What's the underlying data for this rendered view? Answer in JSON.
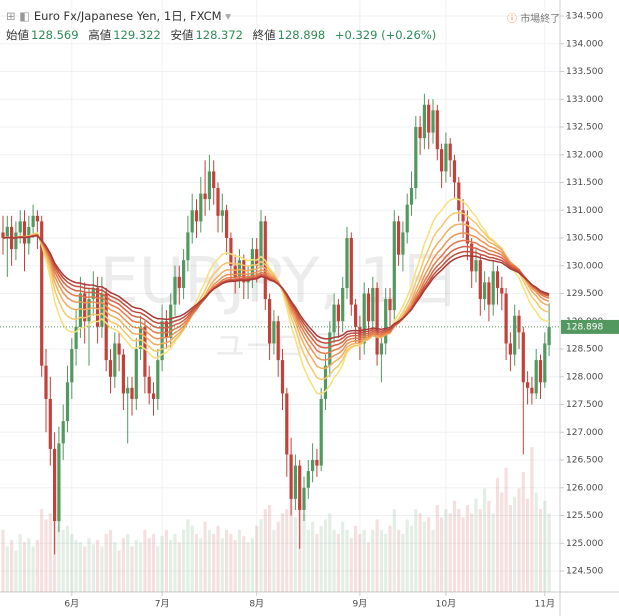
{
  "chart_data": {
    "type": "candlestick",
    "title": "Euro Fx/Japanese Yen, 1日, FXCM",
    "status": "市場終了",
    "ohlc_labels": {
      "open": "始値",
      "high": "高値",
      "low": "安値",
      "close": "終値"
    },
    "change": "+0.329 (+0.26%)",
    "watermark": "EURJPY, 1日",
    "watermark_sub": "ユーロ/円",
    "categories": [
      null,
      null,
      null,
      null,
      null,
      null,
      null,
      null,
      null,
      null,
      null,
      null,
      null,
      null,
      null,
      null,
      "6月",
      null,
      null,
      null,
      null,
      null,
      null,
      null,
      null,
      null,
      null,
      null,
      null,
      null,
      null,
      null,
      null,
      null,
      null,
      null,
      null,
      "7月",
      null,
      null,
      null,
      null,
      null,
      null,
      null,
      null,
      null,
      null,
      null,
      null,
      null,
      null,
      null,
      null,
      null,
      null,
      null,
      null,
      null,
      "8月",
      null,
      null,
      null,
      null,
      null,
      null,
      null,
      null,
      null,
      null,
      null,
      null,
      null,
      null,
      null,
      null,
      null,
      null,
      null,
      null,
      null,
      null,
      null,
      "9月",
      null,
      null,
      null,
      null,
      null,
      null,
      null,
      null,
      null,
      null,
      null,
      null,
      null,
      null,
      null,
      null,
      null,
      null,
      null,
      "10月",
      null,
      null,
      null,
      null,
      null,
      null,
      null,
      null,
      null,
      null,
      null,
      null,
      null,
      null,
      null,
      null,
      null,
      null,
      null,
      null,
      null,
      null,
      "11月",
      null
    ],
    "open": [
      130.6,
      130.5,
      130.7,
      130.3,
      130.6,
      130.8,
      130.4,
      130.7,
      130.9,
      130.8,
      128.2,
      127.6,
      126.7,
      125.4,
      126.8,
      127.2,
      127.9,
      128.5,
      128.9,
      129.5,
      129.0,
      129.4,
      129.6,
      128.9,
      129.5,
      128.3,
      128.0,
      128.6,
      128.4,
      127.7,
      127.8,
      127.6,
      128.5,
      128.9,
      128.0,
      127.7,
      127.6,
      128.3,
      129.0,
      128.7,
      129.3,
      129.8,
      129.6,
      130.1,
      130.6,
      131.0,
      130.8,
      131.3,
      131.2,
      131.7,
      131.4,
      130.9,
      131.0,
      130.5,
      130.0,
      129.8,
      130.1,
      129.7,
      129.8,
      130.3,
      130.0,
      130.8,
      129.4,
      128.6,
      129.0,
      128.3,
      127.7,
      126.6,
      125.8,
      126.4,
      125.6,
      126.0,
      126.3,
      126.5,
      126.4,
      127.6,
      128.2,
      128.8,
      129.3,
      129.0,
      129.6,
      130.5,
      129.3,
      128.9,
      128.6,
      129.5,
      129.0,
      129.6,
      128.4,
      128.6,
      129.4,
      129.2,
      130.8,
      130.2,
      130.6,
      131.1,
      131.4,
      132.5,
      132.3,
      132.9,
      132.4,
      132.8,
      132.1,
      131.7,
      132.2,
      131.9,
      131.5,
      131.0,
      130.8,
      130.4,
      129.9,
      130.1,
      129.4,
      129.7,
      129.3,
      129.9,
      129.6,
      129.5,
      128.6,
      128.4,
      129.1,
      128.8,
      127.9,
      127.8,
      127.7,
      128.3,
      127.9,
      128.569
    ],
    "high": [
      130.9,
      130.9,
      130.9,
      130.8,
      131.0,
      131.0,
      130.9,
      131.1,
      131.0,
      130.9,
      128.5,
      128.0,
      127.0,
      127.1,
      127.5,
      128.2,
      128.7,
      129.2,
      129.8,
      129.7,
      129.6,
      129.9,
      129.8,
      129.8,
      129.6,
      128.5,
      128.8,
      128.8,
      128.5,
      128.0,
      128.0,
      128.7,
      129.1,
      129.0,
      128.2,
      127.9,
      128.5,
      129.3,
      129.2,
      129.5,
      130.0,
      130.0,
      130.3,
      130.9,
      131.3,
      131.2,
      131.6,
      131.9,
      132.0,
      131.9,
      131.5,
      131.3,
      131.1,
      130.6,
      130.2,
      130.3,
      130.2,
      130.0,
      130.5,
      130.5,
      131.0,
      130.9,
      129.5,
      129.2,
      129.1,
      128.5,
      127.8,
      126.9,
      126.6,
      126.5,
      126.2,
      126.5,
      126.8,
      126.7,
      127.8,
      128.4,
      129.0,
      129.5,
      129.4,
      129.8,
      130.7,
      130.6,
      129.4,
      129.1,
      129.7,
      129.6,
      129.8,
      129.7,
      128.8,
      129.6,
      129.6,
      131.0,
      130.9,
      130.8,
      131.3,
      131.7,
      132.7,
      132.7,
      133.1,
      133.0,
      133.0,
      132.9,
      132.2,
      132.4,
      132.3,
      132.0,
      131.6,
      131.2,
      131.0,
      130.5,
      130.3,
      130.2,
      129.9,
      129.8,
      130.1,
      130.0,
      129.8,
      129.6,
      128.8,
      129.3,
      129.2,
      128.9,
      128.1,
      128.0,
      128.5,
      128.4,
      128.8,
      129.322
    ],
    "low": [
      130.2,
      129.8,
      130.0,
      130.1,
      130.4,
      129.9,
      130.2,
      130.5,
      130.3,
      128.0,
      127.0,
      126.4,
      124.8,
      125.2,
      126.5,
      127.0,
      127.6,
      128.2,
      128.7,
      128.6,
      128.2,
      129.1,
      128.6,
      128.7,
      128.1,
      127.7,
      127.8,
      128.1,
      127.4,
      126.8,
      127.3,
      127.4,
      128.3,
      127.7,
      127.5,
      127.3,
      127.4,
      128.1,
      128.5,
      128.5,
      129.1,
      129.3,
      129.4,
      129.9,
      130.4,
      130.5,
      130.6,
      130.9,
      131.0,
      131.1,
      130.6,
      130.6,
      130.2,
      129.7,
      129.5,
      129.6,
      129.4,
      129.4,
      129.6,
      129.7,
      129.8,
      129.2,
      128.3,
      128.4,
      128.0,
      127.4,
      126.2,
      125.5,
      125.6,
      124.9,
      125.4,
      125.8,
      126.1,
      126.2,
      126.3,
      127.4,
      128.0,
      128.6,
      128.7,
      128.8,
      129.4,
      129.1,
      128.6,
      128.3,
      128.4,
      128.7,
      128.8,
      128.2,
      127.9,
      128.4,
      128.9,
      129.0,
      130.0,
      129.9,
      130.4,
      130.9,
      131.2,
      132.0,
      132.1,
      132.1,
      132.2,
      131.9,
      131.4,
      131.5,
      131.6,
      131.2,
      130.8,
      130.5,
      130.1,
      129.6,
      129.7,
      129.1,
      129.2,
      129.0,
      129.1,
      129.3,
      129.2,
      128.3,
      128.1,
      128.2,
      128.5,
      126.6,
      127.5,
      127.5,
      127.6,
      127.6,
      127.8,
      128.372
    ],
    "close": [
      130.5,
      130.7,
      130.3,
      130.6,
      130.8,
      130.4,
      130.7,
      130.9,
      130.8,
      128.2,
      127.6,
      126.7,
      125.4,
      126.8,
      127.2,
      127.9,
      128.5,
      128.9,
      129.5,
      129.0,
      129.4,
      129.6,
      128.9,
      129.5,
      128.3,
      128.0,
      128.6,
      128.4,
      127.7,
      127.8,
      127.6,
      128.5,
      128.9,
      128.0,
      127.7,
      127.6,
      128.3,
      129.0,
      128.7,
      129.3,
      129.8,
      129.6,
      130.1,
      130.6,
      131.0,
      130.8,
      131.3,
      131.2,
      131.7,
      131.4,
      130.9,
      131.0,
      130.5,
      130.0,
      129.8,
      130.1,
      129.7,
      129.8,
      130.3,
      130.0,
      130.8,
      129.4,
      128.6,
      129.0,
      128.3,
      127.7,
      126.6,
      125.8,
      126.4,
      125.6,
      126.0,
      126.3,
      126.5,
      126.4,
      127.6,
      128.2,
      128.8,
      129.3,
      129.0,
      129.6,
      130.5,
      129.3,
      128.9,
      128.6,
      129.5,
      129.0,
      129.6,
      128.4,
      128.6,
      129.4,
      129.2,
      130.8,
      130.2,
      130.6,
      131.1,
      131.4,
      132.5,
      132.3,
      132.9,
      132.4,
      132.8,
      132.1,
      131.7,
      132.2,
      131.9,
      131.5,
      131.0,
      130.8,
      130.4,
      129.9,
      130.1,
      129.4,
      129.7,
      129.3,
      129.9,
      129.6,
      129.5,
      128.6,
      128.4,
      129.1,
      128.8,
      127.9,
      127.8,
      127.7,
      128.3,
      127.9,
      128.6,
      128.898
    ],
    "volume": [
      30,
      22,
      25,
      20,
      28,
      24,
      26,
      22,
      25,
      40,
      35,
      38,
      45,
      42,
      30,
      32,
      28,
      25,
      24,
      22,
      26,
      23,
      25,
      22,
      28,
      30,
      24,
      20,
      26,
      28,
      22,
      25,
      24,
      30,
      26,
      28,
      22,
      27,
      30,
      25,
      28,
      24,
      30,
      35,
      32,
      28,
      26,
      34,
      30,
      28,
      32,
      26,
      30,
      28,
      25,
      30,
      27,
      24,
      26,
      32,
      35,
      40,
      42,
      30,
      34,
      38,
      40,
      45,
      36,
      44,
      38,
      30,
      34,
      28,
      32,
      35,
      38,
      30,
      28,
      34,
      30,
      26,
      32,
      28,
      30,
      24,
      30,
      35,
      30,
      28,
      32,
      40,
      30,
      28,
      35,
      32,
      40,
      38,
      34,
      36,
      30,
      42,
      36,
      40,
      38,
      44,
      40,
      36,
      42,
      38,
      45,
      40,
      50,
      44,
      38,
      55,
      48,
      60,
      42,
      46,
      50,
      58,
      45,
      70,
      48,
      40,
      44,
      38
    ],
    "up_color": "#53985f",
    "down_color": "#c2413a",
    "ribbon": {
      "periods": [
        20,
        25,
        30,
        35,
        40,
        45,
        50,
        55
      ],
      "colors": [
        "#f7e07a",
        "#f5c86b",
        "#f2ae5e",
        "#ec9454",
        "#e27a4c",
        "#d56246",
        "#c24d3f",
        "#a93a35"
      ]
    },
    "ylim": [
      124.5,
      134.5
    ],
    "yticks": [
      {
        "value": 124.5,
        "label": "124.500"
      },
      {
        "value": 125,
        "label": "125.000"
      },
      {
        "value": 125.5,
        "label": "125.500"
      },
      {
        "value": 126,
        "label": "126.000"
      },
      {
        "value": 126.5,
        "label": "126.500"
      },
      {
        "value": 127,
        "label": "127.000"
      },
      {
        "value": 127.5,
        "label": "127.500"
      },
      {
        "value": 128,
        "label": "128.000"
      },
      {
        "value": 128.5,
        "label": "128.500"
      },
      {
        "value": 129,
        "label": "129.000"
      },
      {
        "value": 129.5,
        "label": "129.500"
      },
      {
        "value": 130,
        "label": "130.000"
      },
      {
        "value": 130.5,
        "label": "130.500"
      },
      {
        "value": 131,
        "label": "131.000"
      },
      {
        "value": 131.5,
        "label": "131.500"
      },
      {
        "value": 132,
        "label": "132.000"
      },
      {
        "value": 132.5,
        "label": "132.500"
      },
      {
        "value": 133,
        "label": "133.000"
      },
      {
        "value": 133.5,
        "label": "133.500"
      },
      {
        "value": 134,
        "label": "134.000"
      },
      {
        "value": 134.5,
        "label": "134.500"
      }
    ],
    "grid": true
  }
}
